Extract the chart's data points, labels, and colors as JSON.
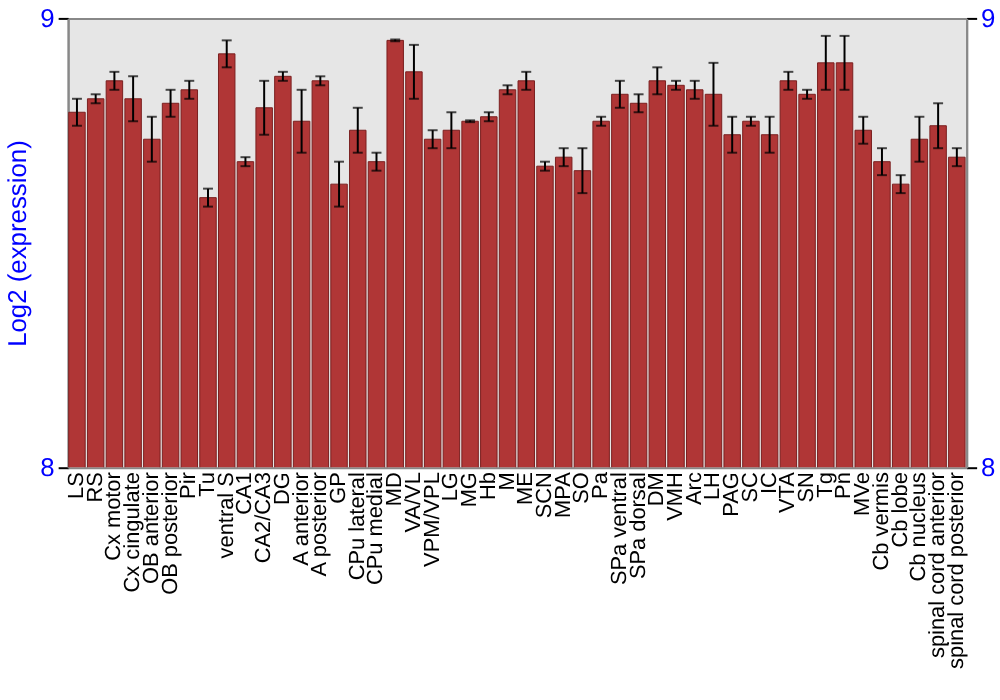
{
  "chart_data": {
    "type": "bar",
    "ylabel": "Log2 (expression)",
    "categories": [
      "LS",
      "RS",
      "Cx motor",
      "Cx cingulate",
      "OB anterior",
      "OB posterior",
      "Pir",
      "Tu",
      "ventral S",
      "CA1",
      "CA2/CA3",
      "DG",
      "A anterior",
      "A posterior",
      "GP",
      "CPu lateral",
      "CPu medial",
      "MD",
      "VA/VL",
      "VPM/VPL",
      "LG",
      "MG",
      "Hb",
      "M",
      "ME",
      "SCN",
      "MPA",
      "SO",
      "Pa",
      "SPa ventral",
      "SPa dorsal",
      "DM",
      "VMH",
      "Arc",
      "LH",
      "PAG",
      "SC",
      "IC",
      "VTA",
      "SN",
      "Tg",
      "Pn",
      "MVe",
      "Cb vermis",
      "Cb lobe",
      "Cb nucleus",
      "spinal cord anterior",
      "spinal cord posterior"
    ],
    "values": [
      8.79,
      8.82,
      8.86,
      8.82,
      8.73,
      8.81,
      8.84,
      8.6,
      8.92,
      8.68,
      8.8,
      8.87,
      8.77,
      8.86,
      8.63,
      8.75,
      8.68,
      8.95,
      8.88,
      8.73,
      8.75,
      8.77,
      8.78,
      8.84,
      8.86,
      8.67,
      8.69,
      8.66,
      8.77,
      8.83,
      8.81,
      8.86,
      8.85,
      8.84,
      8.83,
      8.74,
      8.77,
      8.74,
      8.86,
      8.83,
      8.9,
      8.9,
      8.75,
      8.68,
      8.63,
      8.73,
      8.76,
      8.69
    ],
    "errors": [
      0.03,
      0.01,
      0.02,
      0.05,
      0.05,
      0.03,
      0.02,
      0.02,
      0.03,
      0.01,
      0.06,
      0.01,
      0.07,
      0.01,
      0.05,
      0.05,
      0.02,
      0.002,
      0.06,
      0.02,
      0.04,
      0.002,
      0.01,
      0.01,
      0.02,
      0.01,
      0.02,
      0.05,
      0.01,
      0.03,
      0.02,
      0.03,
      0.01,
      0.02,
      0.07,
      0.04,
      0.01,
      0.04,
      0.02,
      0.01,
      0.06,
      0.06,
      0.03,
      0.03,
      0.02,
      0.05,
      0.05,
      0.02
    ],
    "color": "#b03636",
    "ylim": [
      8,
      9
    ],
    "yticks": [
      8,
      9
    ],
    "y2lim": [
      8,
      9
    ],
    "y2ticks": [
      8,
      9
    ],
    "grid": false
  }
}
